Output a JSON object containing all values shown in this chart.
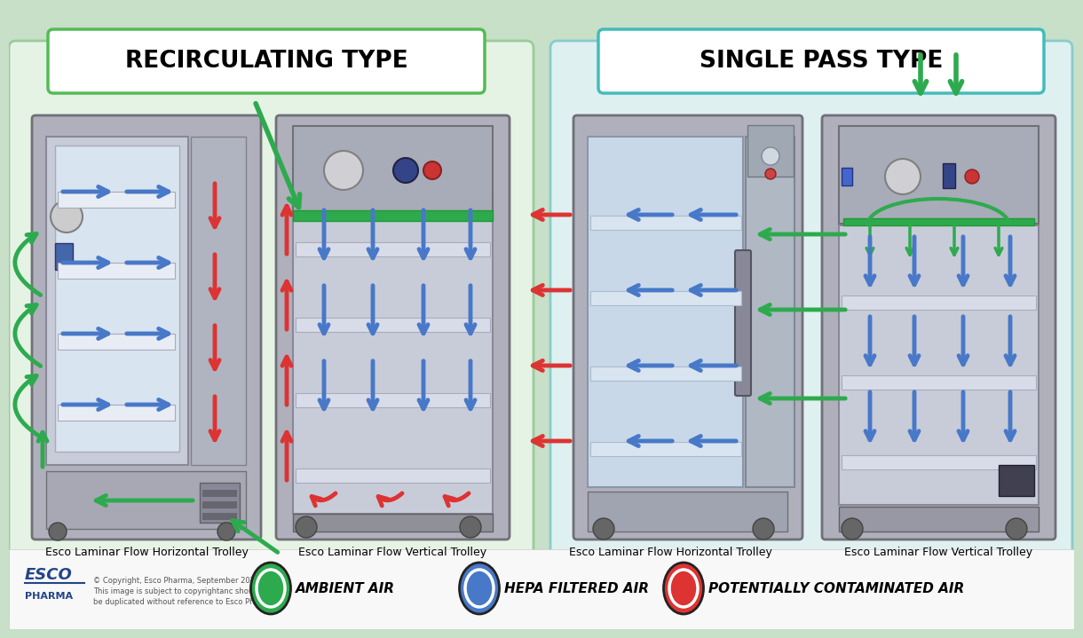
{
  "title_left": "RECIRCULATING TYPE",
  "title_right": "SINGLE PASS TYPE",
  "label_rh": "Esco Laminar Flow Horizontal Trolley",
  "label_rv": "Esco Laminar Flow Vertical Trolley",
  "label_sh": "Esco Laminar Flow Horizontal Trolley",
  "label_sv": "Esco Laminar Flow Vertical Trolley",
  "legend_ambient": "AMBIENT AIR",
  "legend_hepa": "HEPA FILTERED AIR",
  "legend_contaminated": "POTENTIALLY CONTAMINATED AIR",
  "copyright_line1": "© Copyright, Esco Pharma, September 2020",
  "copyright_line2": "This image is subject to copyrightanc should not",
  "copyright_line3": "be duplicated without reference to Esco Pharma",
  "color_amb": "#2eaa4e",
  "color_hepa": "#4878c8",
  "color_cont": "#dd3333",
  "color_bg_overall": "#c8dfc8",
  "color_bg_left_panel": "#e5f3e5",
  "color_bg_right_panel": "#dff0f0",
  "color_trolley_body": "#b0b0bc",
  "color_trolley_inner": "#c0c8d8",
  "color_trolley_dark": "#989898",
  "color_shelf": "#e8e8ee",
  "color_white": "#ffffff",
  "color_footer": "#f8f8f8",
  "color_title_border_left": "#55bb55",
  "color_title_border_right": "#44bbbb"
}
